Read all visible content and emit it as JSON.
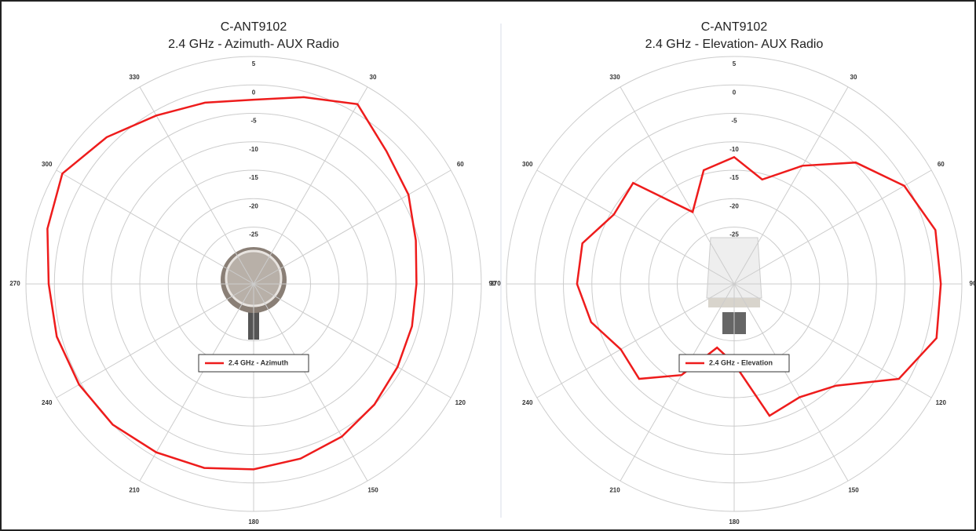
{
  "chart_data": [
    {
      "type": "polar",
      "title": "C-ANT9102",
      "subtitle": "2.4 GHz - Azimuth- AUX Radio",
      "rlim": [
        -35,
        5
      ],
      "rticks": [
        5,
        0,
        -5,
        -10,
        -15,
        -20,
        -25
      ],
      "thetaticks": [
        30,
        60,
        90,
        120,
        150,
        180,
        210,
        240,
        270,
        300,
        330
      ],
      "legend": "center",
      "series": [
        {
          "name": "2.4 GHz - Azimuth",
          "color": "#ee1c1c",
          "theta": [
            0,
            15,
            30,
            45,
            60,
            75,
            90,
            105,
            120,
            135,
            150,
            165,
            180,
            195,
            210,
            225,
            240,
            255,
            270,
            285,
            300,
            315,
            330,
            345
          ],
          "values": [
            -2.6,
            -1,
            1.5,
            -2,
            -3.6,
            -5.5,
            -6.4,
            -6.2,
            -5.8,
            -5,
            -4,
            -3.2,
            -2.4,
            -1.5,
            -0.8,
            0,
            0.4,
            0.8,
            1,
            2.5,
            3.8,
            1.5,
            -0.8,
            -2
          ]
        }
      ]
    },
    {
      "type": "polar",
      "title": "C-ANT9102",
      "subtitle": "2.4 GHz - Elevation- AUX Radio",
      "rlim": [
        -35,
        5
      ],
      "rticks": [
        5,
        0,
        -5,
        -10,
        -15,
        -20,
        -25
      ],
      "thetaticks": [
        30,
        60,
        90,
        120,
        150,
        180,
        210,
        240,
        270,
        300,
        330
      ],
      "legend": "center",
      "series": [
        {
          "name": "2.4 GHz - Elevation",
          "color": "#ee1c1c",
          "theta": [
            0,
            15,
            30,
            45,
            60,
            75,
            90,
            105,
            120,
            135,
            150,
            165,
            180,
            195,
            210,
            225,
            240,
            255,
            270,
            285,
            300,
            315,
            330,
            345
          ],
          "values": [
            -12.7,
            -16,
            -11,
            -4.8,
            -0.5,
            1.6,
            1.3,
            1.8,
            -1.6,
            -9.7,
            -12,
            -11,
            -21,
            -23.4,
            -16.5,
            -11.4,
            -12,
            -9,
            -7.4,
            -7.4,
            -10.6,
            -9.9,
            -20.4,
            -14.3
          ]
        }
      ]
    }
  ]
}
